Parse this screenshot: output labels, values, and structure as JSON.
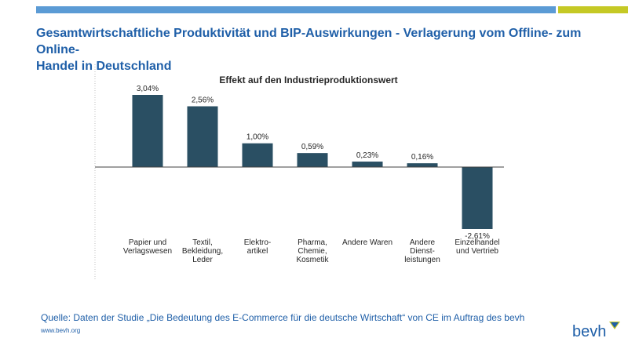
{
  "header": {
    "title_line1": "Gesamtwirtschaftliche Produktivität und BIP-Auswirkungen - Verlagerung vom Offline- zum Online-",
    "title_line2": "Handel in Deutschland"
  },
  "colors": {
    "bar": "#2a4f63",
    "title": "#1f5fa8",
    "top_bar_blue": "#5b9bd5",
    "top_bar_lime": "#c5c925"
  },
  "chart_data": {
    "type": "bar",
    "title": "Effekt auf den Industrieproduktionswert",
    "categories": [
      [
        "Papier und",
        "Verlagswesen"
      ],
      [
        "Textil,",
        "Bekleidung,",
        "Leder"
      ],
      [
        "Elektro-",
        "artikel"
      ],
      [
        "Pharma,",
        "Chemie,",
        "Kosmetik"
      ],
      [
        "Andere Waren"
      ],
      [
        "Andere",
        "Dienst-",
        "leistungen"
      ],
      [
        "Einzelhandel",
        "und Vertrieb"
      ]
    ],
    "values": [
      3.04,
      2.56,
      1.0,
      0.59,
      0.23,
      0.16,
      -2.61
    ],
    "value_labels": [
      "3,04%",
      "2,56%",
      "1,00%",
      "0,59%",
      "0,23%",
      "0,16%",
      "-2,61%"
    ],
    "unit": "%",
    "ylim": [
      -2.61,
      3.04
    ],
    "grid": false,
    "legend": "none"
  },
  "footer": {
    "source": "Quelle: Daten der Studie „Die Bedeutung des E-Commerce für die deutsche Wirtschaft“ von CE im Auftrag des bevh",
    "website": "www.bevh.org",
    "logo_text": "bevh"
  }
}
